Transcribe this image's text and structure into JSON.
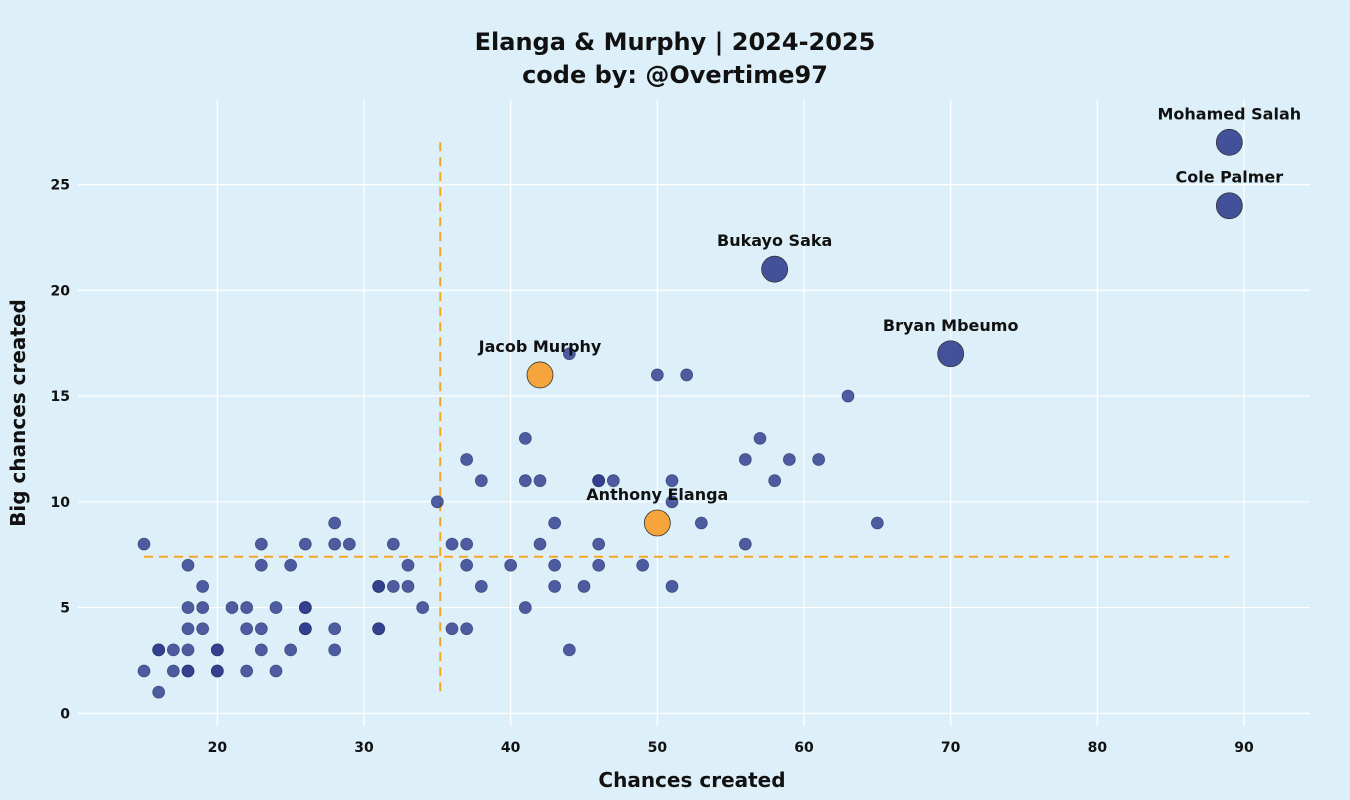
{
  "chart_data": {
    "type": "scatter",
    "title": "Elanga & Murphy | 2024-2025",
    "subtitle": "code by: @Overtime97",
    "xlabel": "Chances created",
    "ylabel": "Big chances created",
    "xlim": [
      10.5,
      94.5
    ],
    "ylim": [
      -0.6,
      29
    ],
    "xticks": [
      20,
      30,
      40,
      50,
      60,
      70,
      80,
      90
    ],
    "yticks": [
      0,
      5,
      10,
      15,
      20,
      25
    ],
    "grid": true,
    "reference_lines": {
      "x": 35.2,
      "y": 7.4
    },
    "colors": {
      "players": "#2d3a8c",
      "highlight": "#f5a030",
      "reference": "#f5a623",
      "background": "#ddf0fa"
    },
    "points": [
      [
        15,
        8
      ],
      [
        15,
        2
      ],
      [
        16,
        3
      ],
      [
        16,
        3
      ],
      [
        16,
        1
      ],
      [
        17,
        3
      ],
      [
        17,
        2
      ],
      [
        18,
        7
      ],
      [
        18,
        5
      ],
      [
        18,
        4
      ],
      [
        18,
        3
      ],
      [
        18,
        2
      ],
      [
        18,
        2
      ],
      [
        19,
        6
      ],
      [
        19,
        5
      ],
      [
        19,
        4
      ],
      [
        20,
        3
      ],
      [
        20,
        3
      ],
      [
        20,
        2
      ],
      [
        20,
        2
      ],
      [
        21,
        5
      ],
      [
        22,
        5
      ],
      [
        22,
        4
      ],
      [
        22,
        2
      ],
      [
        23,
        8
      ],
      [
        23,
        7
      ],
      [
        23,
        4
      ],
      [
        23,
        3
      ],
      [
        24,
        5
      ],
      [
        24,
        2
      ],
      [
        25,
        7
      ],
      [
        25,
        3
      ],
      [
        26,
        8
      ],
      [
        26,
        5
      ],
      [
        26,
        5
      ],
      [
        26,
        4
      ],
      [
        26,
        4
      ],
      [
        28,
        9
      ],
      [
        28,
        8
      ],
      [
        28,
        4
      ],
      [
        28,
        3
      ],
      [
        29,
        8
      ],
      [
        31,
        6
      ],
      [
        31,
        6
      ],
      [
        31,
        4
      ],
      [
        31,
        4
      ],
      [
        32,
        8
      ],
      [
        32,
        6
      ],
      [
        33,
        7
      ],
      [
        33,
        6
      ],
      [
        34,
        5
      ],
      [
        35,
        10
      ],
      [
        36,
        8
      ],
      [
        36,
        4
      ],
      [
        37,
        12
      ],
      [
        37,
        8
      ],
      [
        37,
        7
      ],
      [
        37,
        4
      ],
      [
        38,
        11
      ],
      [
        38,
        6
      ],
      [
        40,
        7
      ],
      [
        41,
        13
      ],
      [
        41,
        11
      ],
      [
        41,
        5
      ],
      [
        42,
        11
      ],
      [
        42,
        8
      ],
      [
        43,
        9
      ],
      [
        43,
        7
      ],
      [
        43,
        6
      ],
      [
        44,
        17
      ],
      [
        44,
        3
      ],
      [
        45,
        6
      ],
      [
        46,
        11
      ],
      [
        46,
        11
      ],
      [
        46,
        8
      ],
      [
        46,
        7
      ],
      [
        47,
        11
      ],
      [
        49,
        7
      ],
      [
        50,
        16
      ],
      [
        51,
        11
      ],
      [
        51,
        10
      ],
      [
        51,
        6
      ],
      [
        52,
        16
      ],
      [
        53,
        9
      ],
      [
        56,
        12
      ],
      [
        56,
        8
      ],
      [
        57,
        13
      ],
      [
        58,
        11
      ],
      [
        59,
        12
      ],
      [
        61,
        12
      ],
      [
        63,
        15
      ],
      [
        65,
        9
      ]
    ],
    "labeled_players": [
      {
        "name": "Mohamed Salah",
        "x": 89,
        "y": 27,
        "highlight": false
      },
      {
        "name": "Cole Palmer",
        "x": 89,
        "y": 24,
        "highlight": false
      },
      {
        "name": "Bukayo Saka",
        "x": 58,
        "y": 21,
        "highlight": false
      },
      {
        "name": "Bryan Mbeumo",
        "x": 70,
        "y": 17,
        "highlight": false
      },
      {
        "name": "Jacob Murphy",
        "x": 42,
        "y": 16,
        "highlight": true
      },
      {
        "name": "Anthony Elanga",
        "x": 50,
        "y": 9,
        "highlight": true
      }
    ]
  }
}
